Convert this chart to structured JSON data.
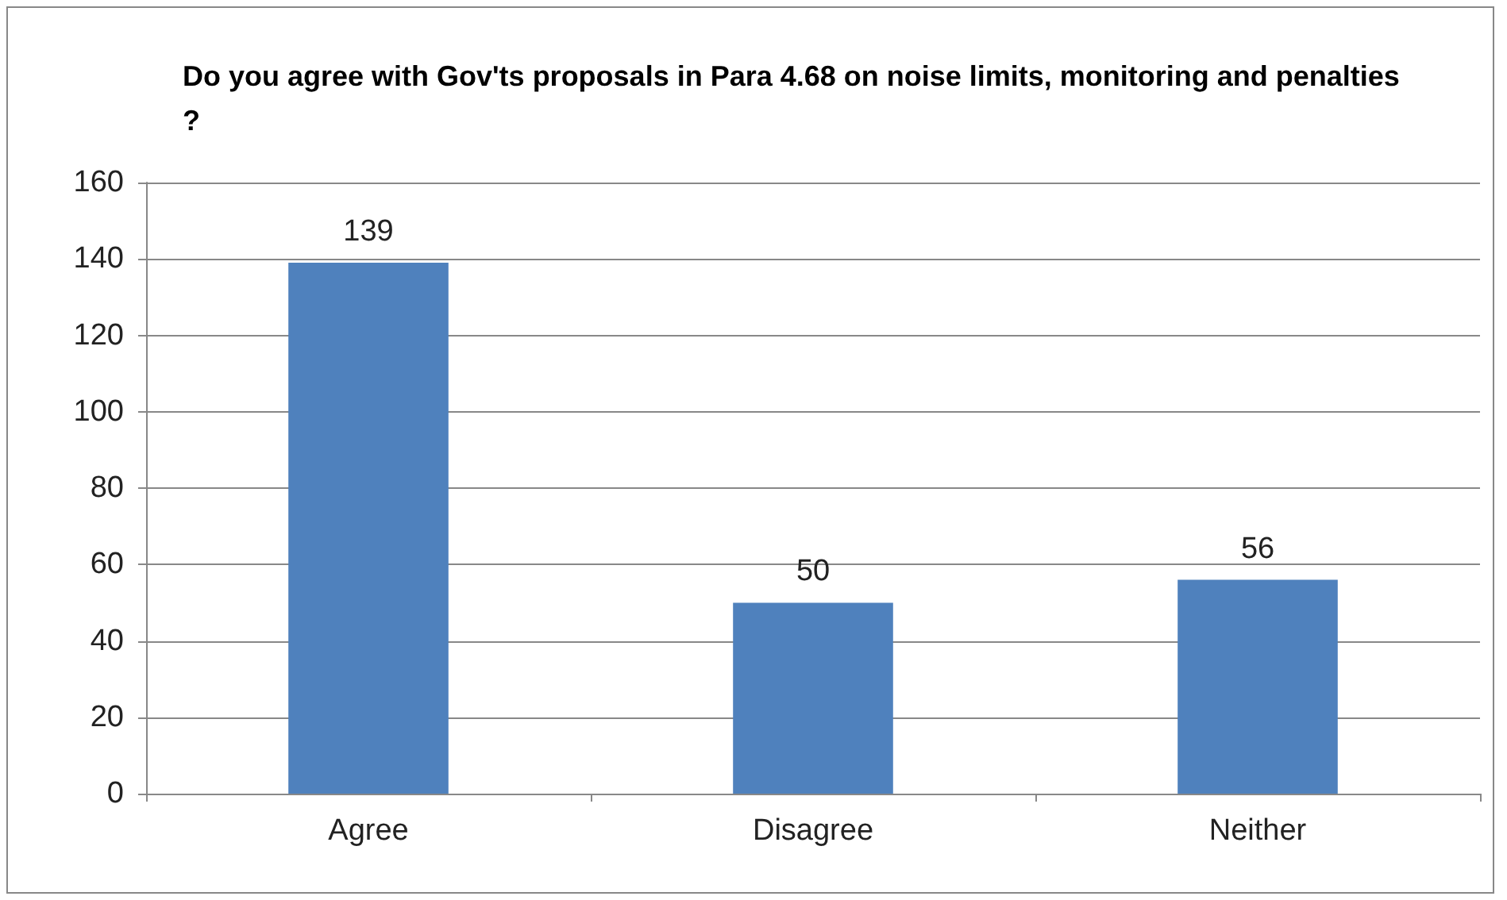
{
  "chart_data": {
    "type": "bar",
    "title": "Do you agree with Gov'ts proposals in Para 4.68 on noise limits, monitoring and penalties?",
    "categories": [
      "Agree",
      "Disagree",
      "Neither"
    ],
    "values": [
      139,
      50,
      56
    ],
    "color": "#4f81bd",
    "ylim": [
      0,
      160
    ],
    "yticks": [
      0,
      20,
      40,
      60,
      80,
      100,
      120,
      140,
      160
    ],
    "grid": "y",
    "data_labels": true
  }
}
